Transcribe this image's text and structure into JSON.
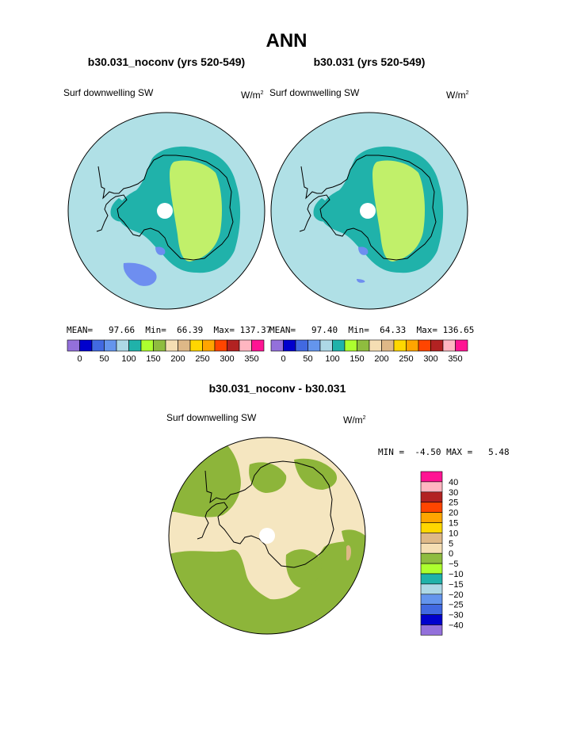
{
  "page": {
    "title": "ANN",
    "diff_title": "b30.031_noconv - b30.031"
  },
  "panels": [
    {
      "case": "b30.031_noconv (yrs 520-549)",
      "field": "Surf downwelling SW",
      "units": "W/m",
      "units_sup": "2",
      "stats": {
        "mean_label": "MEAN=",
        "mean": "97.66",
        "min_label": "Min=",
        "min": "66.39",
        "max_label": "Max=",
        "max": "137.37"
      }
    },
    {
      "case": "b30.031 (yrs 520-549)",
      "field": "Surf downwelling SW",
      "units": "W/m",
      "units_sup": "2",
      "stats": {
        "mean_label": "MEAN=",
        "mean": "97.40",
        "min_label": "Min=",
        "min": "64.33",
        "max_label": "Max=",
        "max": "136.65"
      }
    }
  ],
  "diff_panel": {
    "field": "Surf downwelling SW",
    "units": "W/m",
    "units_sup": "2",
    "minmax": {
      "min_label": "MIN =",
      "min": "-4.50",
      "max_label": "MAX =",
      "max": "5.48"
    }
  },
  "chart_data": [
    {
      "type": "heatmap",
      "name": "b30.031_noconv (yrs 520-549)",
      "projection": "south-polar-stereographic",
      "colorbar": {
        "colors": [
          "#9370db",
          "#0000cd",
          "#4169e1",
          "#6495ed",
          "#add8e6",
          "#20b2aa",
          "#adff2f",
          "#8fbc3f",
          "#f5deb3",
          "#deb887",
          "#ffd700",
          "#ffa500",
          "#ff4500",
          "#b22222",
          "#ffb6c1",
          "#ff1493"
        ],
        "tick_labels": [
          "0",
          "50",
          "100",
          "150",
          "200",
          "250",
          "300",
          "350"
        ]
      },
      "stats": {
        "mean": 97.66,
        "min": 66.39,
        "max": 137.37
      }
    },
    {
      "type": "heatmap",
      "name": "b30.031 (yrs 520-549)",
      "projection": "south-polar-stereographic",
      "colorbar": {
        "colors": [
          "#9370db",
          "#0000cd",
          "#4169e1",
          "#6495ed",
          "#add8e6",
          "#20b2aa",
          "#adff2f",
          "#8fbc3f",
          "#f5deb3",
          "#deb887",
          "#ffd700",
          "#ffa500",
          "#ff4500",
          "#b22222",
          "#ffb6c1",
          "#ff1493"
        ],
        "tick_labels": [
          "0",
          "50",
          "100",
          "150",
          "200",
          "250",
          "300",
          "350"
        ]
      },
      "stats": {
        "mean": 97.4,
        "min": 64.33,
        "max": 136.65
      }
    },
    {
      "type": "heatmap",
      "name": "b30.031_noconv - b30.031",
      "projection": "south-polar-stereographic",
      "colorbar": {
        "colors": [
          "#ff1493",
          "#ffb6c1",
          "#b22222",
          "#ff4500",
          "#ffa500",
          "#ffd700",
          "#deb887",
          "#f5deb3",
          "#8fbc3f",
          "#adff2f",
          "#20b2aa",
          "#add8e6",
          "#6495ed",
          "#4169e1",
          "#0000cd",
          "#9370db"
        ],
        "tick_labels": [
          "40",
          "30",
          "25",
          "20",
          "15",
          "10",
          "5",
          "0",
          "−5",
          "−10",
          "−15",
          "−20",
          "−25",
          "−30",
          "−40"
        ]
      },
      "stats": {
        "min": -4.5,
        "max": 5.48
      }
    }
  ],
  "colors": {
    "ocean": "#b0e0e6",
    "teal": "#20b2aa",
    "light_green": "#c1f06a",
    "blue_patch": "#6e8ef0",
    "olive": "#8db53a",
    "wheat": "#f5e6c0"
  }
}
